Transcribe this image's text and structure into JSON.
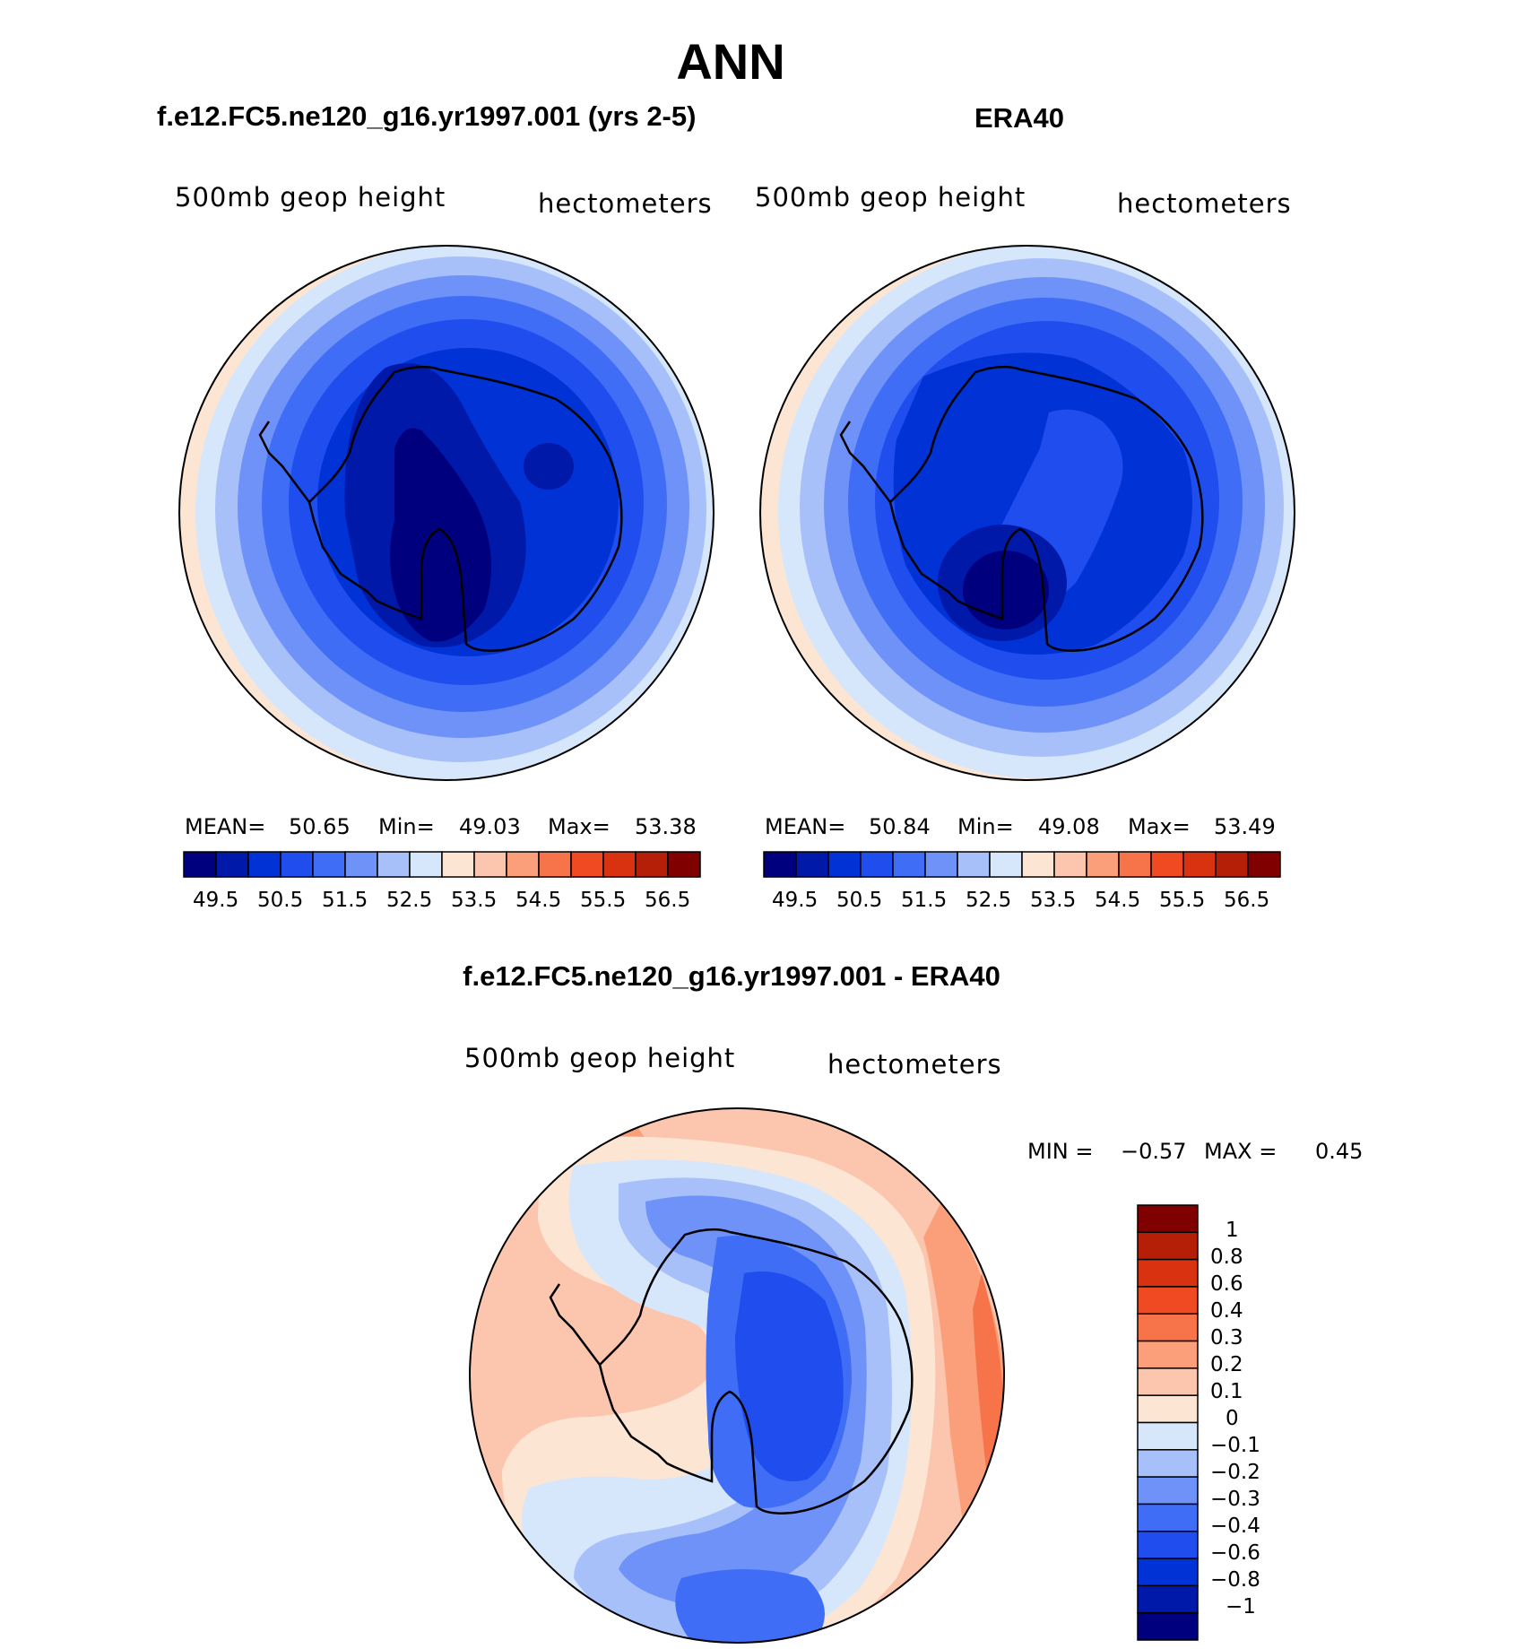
{
  "chart_data": {
    "type": "heatmap",
    "title": "ANN",
    "panels": [
      {
        "id": "model",
        "title": "f.e12.FC5.ne120_g16.yr1997.001 (yrs 2-5)",
        "left_label": "500mb geop height",
        "right_label": "hectometers",
        "stats": {
          "mean_label": "MEAN=",
          "mean": "50.65",
          "min_label": "Min=",
          "min": "49.03",
          "max_label": "Max=",
          "max": "53.38"
        },
        "colorbar": {
          "orientation": "horizontal",
          "levels": [
            "49.5",
            "50.5",
            "51.5",
            "52.5",
            "53.5",
            "54.5",
            "55.5",
            "56.5"
          ]
        }
      },
      {
        "id": "obs",
        "title": "ERA40",
        "left_label": "500mb geop height",
        "right_label": "hectometers",
        "stats": {
          "mean_label": "MEAN=",
          "mean": "50.84",
          "min_label": "Min=",
          "min": "49.08",
          "max_label": "Max=",
          "max": "53.49"
        },
        "colorbar": {
          "orientation": "horizontal",
          "levels": [
            "49.5",
            "50.5",
            "51.5",
            "52.5",
            "53.5",
            "54.5",
            "55.5",
            "56.5"
          ]
        }
      },
      {
        "id": "diff",
        "title": "f.e12.FC5.ne120_g16.yr1997.001 - ERA40",
        "left_label": "500mb geop height",
        "right_label": "hectometers",
        "stats": {
          "min_label": "MIN =",
          "min": "−0.57",
          "max_label": "MAX =",
          "max": "0.45"
        },
        "colorbar": {
          "orientation": "vertical",
          "levels": [
            "1",
            "0.8",
            "0.6",
            "0.4",
            "0.3",
            "0.2",
            "0.1",
            "0",
            "−0.1",
            "−0.2",
            "−0.3",
            "−0.4",
            "−0.6",
            "−0.8",
            "−1"
          ]
        }
      }
    ],
    "palette": [
      "#00007f",
      "#0019a8",
      "#0032d6",
      "#1f4dee",
      "#3f6df5",
      "#6f92f8",
      "#a7c0fa",
      "#d6e7fc",
      "#fde5d4",
      "#fcc5ae",
      "#fa9f7a",
      "#f7744a",
      "#f04a22",
      "#d83210",
      "#b51f08",
      "#800000"
    ]
  }
}
